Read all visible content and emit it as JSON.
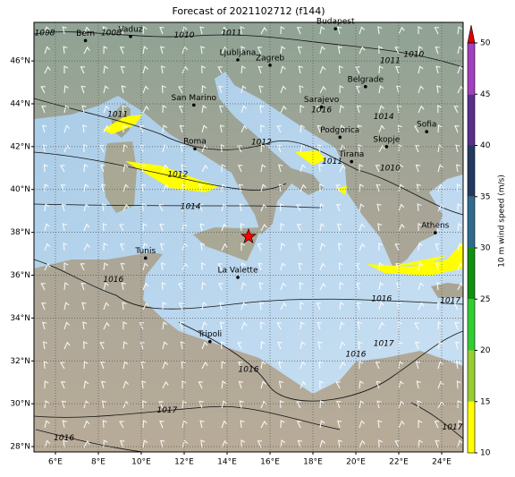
{
  "title": "Forecast of 2021102712 (f144)",
  "map": {
    "lon_range": [
      5,
      25
    ],
    "lat_range": [
      27.75,
      47.8
    ],
    "lon_ticks": [
      {
        "value": 6,
        "label": "6°E"
      },
      {
        "value": 8,
        "label": "8°E"
      },
      {
        "value": 10,
        "label": "10°E"
      },
      {
        "value": 12,
        "label": "12°E"
      },
      {
        "value": 14,
        "label": "14°E"
      },
      {
        "value": 16,
        "label": "16°E"
      },
      {
        "value": 18,
        "label": "18°E"
      },
      {
        "value": 20,
        "label": "20°E"
      },
      {
        "value": 22,
        "label": "22°E"
      },
      {
        "value": 24,
        "label": "24°E"
      }
    ],
    "lat_ticks": [
      {
        "value": 28,
        "label": "28°N"
      },
      {
        "value": 30,
        "label": "30°N"
      },
      {
        "value": 32,
        "label": "32°N"
      },
      {
        "value": 34,
        "label": "34°N"
      },
      {
        "value": 36,
        "label": "36°N"
      },
      {
        "value": 38,
        "label": "38°N"
      },
      {
        "value": 40,
        "label": "40°N"
      },
      {
        "value": 42,
        "label": "42°N"
      },
      {
        "value": 44,
        "label": "44°N"
      },
      {
        "value": 46,
        "label": "46°N"
      }
    ],
    "grid": true
  },
  "cities": [
    {
      "name": "Bern",
      "lon": 7.4,
      "lat": 46.95
    },
    {
      "name": "Vaduz",
      "lon": 9.5,
      "lat": 47.14
    },
    {
      "name": "Budapest",
      "lon": 19.05,
      "lat": 47.5
    },
    {
      "name": "Ljubljana",
      "lon": 14.5,
      "lat": 46.05
    },
    {
      "name": "Zagreb",
      "lon": 16.0,
      "lat": 45.8
    },
    {
      "name": "Belgrade",
      "lon": 20.45,
      "lat": 44.8
    },
    {
      "name": "San Marino",
      "lon": 12.45,
      "lat": 43.94
    },
    {
      "name": "Sarajevo",
      "lon": 18.4,
      "lat": 43.85
    },
    {
      "name": "Podgorica",
      "lon": 19.26,
      "lat": 42.44
    },
    {
      "name": "Skopje",
      "lon": 21.43,
      "lat": 42.0
    },
    {
      "name": "Sofia",
      "lon": 23.3,
      "lat": 42.7
    },
    {
      "name": "Roma",
      "lon": 12.5,
      "lat": 41.9
    },
    {
      "name": "Tirana",
      "lon": 19.8,
      "lat": 41.3
    },
    {
      "name": "Athens",
      "lon": 23.7,
      "lat": 37.98
    },
    {
      "name": "Tunis",
      "lon": 10.2,
      "lat": 36.8
    },
    {
      "name": "La Valette",
      "lon": 14.5,
      "lat": 35.9
    },
    {
      "name": "Tripoli",
      "lon": 13.2,
      "lat": 32.9
    }
  ],
  "isobar_labels": [
    {
      "label": "1008",
      "lon": 5.5,
      "lat": 47.3
    },
    {
      "label": "1008",
      "lon": 8.6,
      "lat": 47.3
    },
    {
      "label": "1010",
      "lon": 12.0,
      "lat": 47.2
    },
    {
      "label": "1011",
      "lon": 14.2,
      "lat": 47.3
    },
    {
      "label": "1011",
      "lon": 21.6,
      "lat": 46.0
    },
    {
      "label": "1010",
      "lon": 22.7,
      "lat": 46.3
    },
    {
      "label": "1011",
      "lon": 8.9,
      "lat": 43.5
    },
    {
      "label": "1012",
      "lon": 11.7,
      "lat": 40.7
    },
    {
      "label": "1014",
      "lon": 12.3,
      "lat": 39.2
    },
    {
      "label": "1016",
      "lon": 18.4,
      "lat": 43.7
    },
    {
      "label": "1014",
      "lon": 21.3,
      "lat": 43.4
    },
    {
      "label": "1012",
      "lon": 15.6,
      "lat": 42.2
    },
    {
      "label": "1011",
      "lon": 18.9,
      "lat": 41.3
    },
    {
      "label": "1010",
      "lon": 21.6,
      "lat": 41.0
    },
    {
      "label": "1016",
      "lon": 8.7,
      "lat": 35.8
    },
    {
      "label": "1016",
      "lon": 21.2,
      "lat": 34.9
    },
    {
      "label": "1017",
      "lon": 24.4,
      "lat": 34.8
    },
    {
      "label": "1017",
      "lon": 21.3,
      "lat": 32.8
    },
    {
      "label": "1016",
      "lon": 20.0,
      "lat": 32.3
    },
    {
      "label": "1016",
      "lon": 15.0,
      "lat": 31.6
    },
    {
      "label": "1017",
      "lon": 11.2,
      "lat": 29.7
    },
    {
      "label": "1016",
      "lon": 6.4,
      "lat": 28.4
    },
    {
      "label": "1017",
      "lon": 24.5,
      "lat": 28.9
    }
  ],
  "marker": {
    "lon": 15.0,
    "lat": 37.8,
    "color": "#ff0000"
  },
  "colorbar": {
    "label": "10 m wind speed (m/s)",
    "ticks": [
      10,
      15,
      20,
      25,
      30,
      35,
      40,
      45,
      50
    ],
    "colors": [
      "#ffff00",
      "#9acd32",
      "#32cd32",
      "#109010",
      "#2f6b8e",
      "#23395f",
      "#5b2e8c",
      "#a43fbf"
    ],
    "extend_color": "#e00000"
  }
}
